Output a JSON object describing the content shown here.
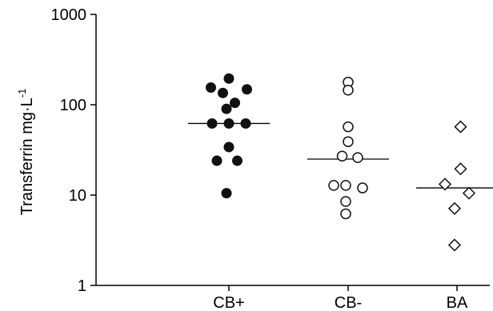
{
  "chart_data": {
    "type": "scatter",
    "scale_y": "log",
    "ylabel": "Transferrin  mg·L",
    "ylabel_superscript": "-1",
    "ylim": [
      1,
      1000
    ],
    "y_ticks": [
      {
        "value": 1,
        "label": "1"
      },
      {
        "value": 10,
        "label": "10"
      },
      {
        "value": 100,
        "label": "100"
      },
      {
        "value": 1000,
        "label": "1000"
      }
    ],
    "categories": [
      "CB+",
      "CB-",
      "BA"
    ],
    "grid": false,
    "legend": "none",
    "series": [
      {
        "category": "CB+",
        "marker": "filled-circle",
        "color": "#111111",
        "median": 62,
        "points": [
          {
            "x": 0,
            "dx": -0.15,
            "y": 155
          },
          {
            "x": 0,
            "dx": 0.0,
            "y": 195
          },
          {
            "x": 0,
            "dx": 0.15,
            "y": 148
          },
          {
            "x": 0,
            "dx": -0.05,
            "y": 135
          },
          {
            "x": 0,
            "dx": 0.05,
            "y": 105
          },
          {
            "x": 0,
            "dx": -0.02,
            "y": 90
          },
          {
            "x": 0,
            "dx": -0.14,
            "y": 62
          },
          {
            "x": 0,
            "dx": 0.0,
            "y": 62
          },
          {
            "x": 0,
            "dx": 0.14,
            "y": 62
          },
          {
            "x": 0,
            "dx": 0.0,
            "y": 34
          },
          {
            "x": 0,
            "dx": -0.1,
            "y": 24
          },
          {
            "x": 0,
            "dx": 0.07,
            "y": 24
          },
          {
            "x": 0,
            "dx": -0.02,
            "y": 10.5
          }
        ]
      },
      {
        "category": "CB-",
        "marker": "open-circle",
        "color": "#111111",
        "median": 25,
        "points": [
          {
            "x": 1,
            "dx": 0.0,
            "y": 178
          },
          {
            "x": 1,
            "dx": 0.0,
            "y": 145
          },
          {
            "x": 1,
            "dx": 0.0,
            "y": 57
          },
          {
            "x": 1,
            "dx": 0.0,
            "y": 39
          },
          {
            "x": 1,
            "dx": -0.05,
            "y": 27
          },
          {
            "x": 1,
            "dx": 0.08,
            "y": 26
          },
          {
            "x": 1,
            "dx": -0.12,
            "y": 12.8
          },
          {
            "x": 1,
            "dx": -0.02,
            "y": 12.8
          },
          {
            "x": 1,
            "dx": 0.12,
            "y": 12
          },
          {
            "x": 1,
            "dx": -0.02,
            "y": 8.5
          },
          {
            "x": 1,
            "dx": -0.02,
            "y": 6.2
          }
        ]
      },
      {
        "category": "BA",
        "marker": "open-diamond",
        "color": "#111111",
        "median": 12,
        "points": [
          {
            "x": 2,
            "dx": 0.03,
            "y": 57
          },
          {
            "x": 2,
            "dx": 0.03,
            "y": 19.5
          },
          {
            "x": 2,
            "dx": -0.1,
            "y": 13.2
          },
          {
            "x": 2,
            "dx": 0.1,
            "y": 10.5
          },
          {
            "x": 2,
            "dx": -0.02,
            "y": 7.1
          },
          {
            "x": 2,
            "dx": -0.02,
            "y": 2.8
          }
        ]
      }
    ]
  }
}
